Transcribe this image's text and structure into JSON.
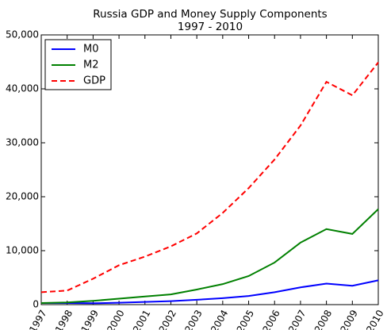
{
  "chart_data": {
    "type": "line",
    "title": "Russia GDP and Money Supply Components",
    "subtitle": "1997 - 2010",
    "x": [
      1997,
      1998,
      1999,
      2000,
      2001,
      2002,
      2003,
      2004,
      2005,
      2006,
      2007,
      2008,
      2009,
      2010
    ],
    "series": [
      {
        "name": "M0",
        "color": "#0000ff",
        "linestyle": "solid",
        "values": [
          300,
          300,
          250,
          350,
          500,
          650,
          900,
          1200,
          1600,
          2300,
          3200,
          3900,
          3500,
          4500
        ]
      },
      {
        "name": "M2",
        "color": "#008000",
        "linestyle": "solid",
        "values": [
          300,
          400,
          700,
          1100,
          1500,
          1900,
          2800,
          3800,
          5300,
          7800,
          11500,
          14000,
          13100,
          17700
        ]
      },
      {
        "name": "GDP",
        "color": "#ff0000",
        "linestyle": "dashed",
        "values": [
          2300,
          2600,
          4800,
          7300,
          8900,
          10800,
          13200,
          17000,
          21600,
          26900,
          33200,
          41300,
          38800,
          44900
        ]
      }
    ],
    "xlim": [
      1997,
      2010
    ],
    "xticks": [
      1997,
      1998,
      1999,
      2000,
      2001,
      2002,
      2003,
      2004,
      2005,
      2006,
      2007,
      2008,
      2009,
      2010
    ],
    "ylim": [
      0,
      50000
    ],
    "yticks": [
      0,
      {
        "value": 10000,
        "label": "10,000"
      },
      {
        "value": 20000,
        "label": "20,000"
      },
      {
        "value": 30000,
        "label": "30,000"
      },
      {
        "value": 40000,
        "label": "40,000"
      },
      {
        "value": 50000,
        "label": "50,000"
      }
    ],
    "grid": false,
    "legend": "upper left"
  }
}
